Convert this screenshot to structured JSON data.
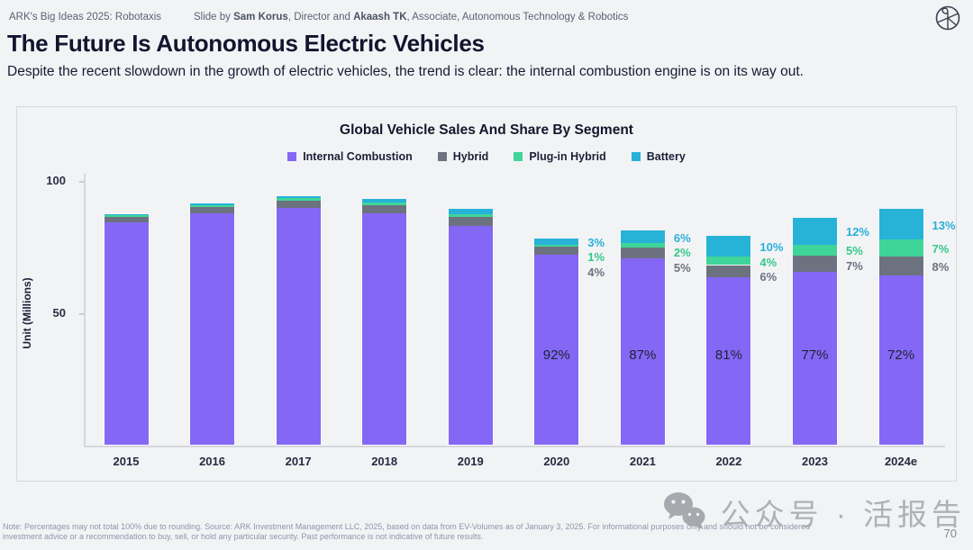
{
  "header": {
    "left": "ARK's Big Ideas 2025: Robotaxis",
    "slide_by_prefix": "Slide by ",
    "author1": "Sam Korus",
    "mid": ", Director and ",
    "author2": "Akaash TK",
    "suffix": ", Associate, Autonomous Technology & Robotics"
  },
  "title": "The Future Is Autonomous Electric Vehicles",
  "subtitle": "Despite the recent slowdown in the growth of electric vehicles, the trend is clear: the internal combustion engine is on its way out.",
  "footnote_line1": "Note: Percentages may not total 100% due to rounding. Source: ARK Investment Management LLC, 2025, based on data from EV-Volumes as of January 3, 2025. For informational purposes only and should not be considered",
  "footnote_line2": "investment advice or a recommendation to buy, sell, or hold any particular security. Past performance is not indicative of future results.",
  "page_number": "70",
  "watermark_text": "公众号 · 活报告",
  "chart_data": {
    "type": "bar",
    "stacked": true,
    "title": "Global Vehicle Sales And Share By Segment",
    "ylabel": "Unit (Millions)",
    "ylim": [
      0,
      100
    ],
    "yticks": [
      {
        "value": 50,
        "label": "50"
      },
      {
        "value": 100,
        "label": "100"
      }
    ],
    "grid": false,
    "legend_position": "top",
    "categories": [
      "2015",
      "2016",
      "2017",
      "2018",
      "2019",
      "2020",
      "2021",
      "2022",
      "2023",
      "2024e"
    ],
    "totals_millions": [
      87,
      91,
      94,
      93,
      89,
      78,
      81,
      78,
      85,
      89
    ],
    "series": [
      {
        "name": "Internal Combustion",
        "color": "#8468F5",
        "label_color": "#1e2235",
        "share_pct": [
          96.7,
          96.0,
          95.0,
          94.0,
          93.0,
          92,
          87,
          81,
          77,
          72
        ],
        "labels": [
          null,
          null,
          null,
          null,
          null,
          "92%",
          "87%",
          "81%",
          "77%",
          "72%"
        ]
      },
      {
        "name": "Hybrid",
        "color": "#6D7280",
        "label_color": "#6D7280",
        "share_pct": [
          2.4,
          2.8,
          3.0,
          3.3,
          3.8,
          4,
          5,
          6,
          7,
          8
        ],
        "labels": [
          null,
          null,
          null,
          null,
          null,
          "4%",
          "5%",
          "6%",
          "7%",
          "8%"
        ]
      },
      {
        "name": "Plug-in Hybrid",
        "color": "#3FD598",
        "label_color": "#35c98c",
        "share_pct": [
          0.5,
          0.6,
          1.0,
          1.2,
          1.2,
          1,
          2,
          4,
          5,
          7
        ],
        "labels": [
          null,
          null,
          null,
          null,
          null,
          "1%",
          "2%",
          "4%",
          "5%",
          "7%"
        ]
      },
      {
        "name": "Battery",
        "color": "#27B2D8",
        "label_color": "#29b0d8",
        "share_pct": [
          0.4,
          0.6,
          1.0,
          1.5,
          2.0,
          3,
          6,
          10,
          12,
          13
        ],
        "labels": [
          null,
          null,
          null,
          null,
          null,
          "3%",
          "6%",
          "10%",
          "12%",
          "13%"
        ]
      }
    ]
  }
}
